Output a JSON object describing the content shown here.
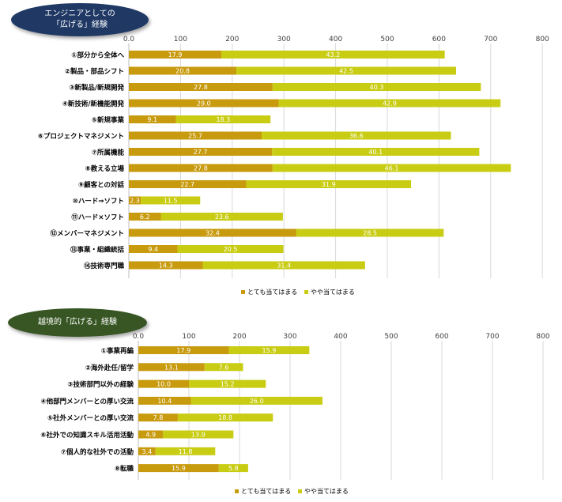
{
  "colors": {
    "dark": "#c89a0e",
    "light": "#c8cc12",
    "badge1": "#1f3864",
    "badge2": "#375623"
  },
  "chart_data": [
    {
      "type": "bar",
      "orientation": "horizontal",
      "stacked": true,
      "title": "エンジニアとしての「広げる」経験",
      "title_lines": [
        "エンジニアとしての",
        "「広げる」経験"
      ],
      "xlim": [
        0,
        800
      ],
      "xticks": [
        "0.0",
        "100",
        "200",
        "300",
        "400",
        "500",
        "600",
        "700",
        "800"
      ],
      "categories": [
        "①部分から全体へ",
        "②製品・部品シフト",
        "③新製品/新規開発",
        "④新技術/新機能開発",
        "⑤新規事業",
        "⑥プロジェクトマネジメント",
        "⑦所属機能",
        "⑧教える立場",
        "⑨顧客との対話",
        "⑩ハード⇒ソフト",
        "⑪ハード×ソフト",
        "⑫メンバーマネジメント",
        "⑬事業・組織統括",
        "⑭技術専門職"
      ],
      "series": [
        {
          "name": "とても当てはまる",
          "values": [
            17.9,
            20.8,
            27.8,
            29.0,
            9.1,
            25.7,
            27.7,
            27.8,
            22.7,
            2.3,
            6.2,
            32.4,
            9.4,
            14.3
          ],
          "labels": [
            "17.9",
            "20.8",
            "27.8",
            "29.0",
            "9.1",
            "25.7",
            "27.7",
            "27.8",
            "22.7",
            "2.3",
            "6.2",
            "32.4",
            "9.4",
            "14.3"
          ]
        },
        {
          "name": "やや当てはまる",
          "values": [
            43.2,
            42.5,
            40.3,
            42.9,
            18.3,
            36.6,
            40.1,
            46.1,
            31.9,
            11.5,
            23.6,
            28.5,
            20.5,
            31.4
          ],
          "labels": [
            "43.2",
            "42.5",
            "40.3",
            "42.9",
            "18.3",
            "36.6",
            "40.1",
            "46.1",
            "31.9",
            "11.5",
            "23.6",
            "28.5",
            "20.5",
            "31.4"
          ]
        }
      ],
      "legend": "bottom"
    },
    {
      "type": "bar",
      "orientation": "horizontal",
      "stacked": true,
      "title": "越境的「広げる」経験",
      "title_lines": [
        "越境的「広げる」経験"
      ],
      "xlim": [
        0,
        800
      ],
      "xticks": [
        "0.0",
        "100",
        "200",
        "300",
        "400",
        "500",
        "600",
        "700",
        "800"
      ],
      "categories": [
        "①事業再編",
        "②海外赴任/留学",
        "③技術部門以外の経験",
        "④他部門メンバーとの厚い交流",
        "⑤社外メンバーとの厚い交流",
        "⑥社外での知識スキル活用活動",
        "⑦個人的な社外での活動",
        "⑧転職"
      ],
      "series": [
        {
          "name": "とても当てはまる",
          "values": [
            17.9,
            13.1,
            10.0,
            10.4,
            7.8,
            4.9,
            3.4,
            15.9
          ],
          "labels": [
            "17.9",
            "13.1",
            "10.0",
            "10.4",
            "7.8",
            "4.9",
            "3.4",
            "15.9"
          ]
        },
        {
          "name": "やや当てはまる",
          "values": [
            15.9,
            7.6,
            15.2,
            26.0,
            18.8,
            13.9,
            11.8,
            5.8
          ],
          "labels": [
            "15.9",
            "7.6",
            "15.2",
            "26.0",
            "18.8",
            "13.9",
            "11.8",
            "5.8"
          ]
        }
      ],
      "legend": "bottom"
    }
  ]
}
